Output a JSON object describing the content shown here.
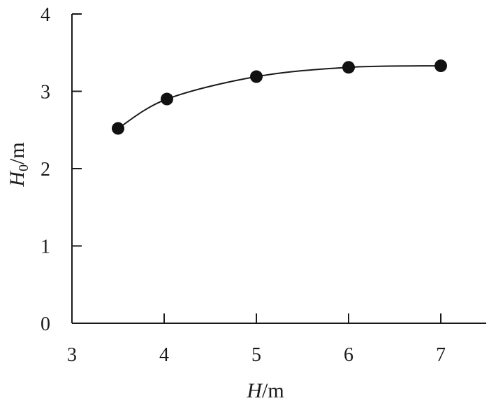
{
  "chart_data": {
    "type": "scatter",
    "title": "",
    "xlabel": {
      "symbol": "H",
      "sub": "",
      "unit": "/m"
    },
    "ylabel": {
      "symbol": "H",
      "sub": "0",
      "unit": "/m"
    },
    "xlim": [
      3,
      7.5
    ],
    "ylim": [
      0,
      4
    ],
    "xticks": [
      "3",
      "4",
      "5",
      "6",
      "7"
    ],
    "yticks": [
      "0",
      "1",
      "2",
      "3",
      "4"
    ],
    "grid": false,
    "legend": "none",
    "series": [
      {
        "x": [
          3.5,
          4.03,
          5.0,
          6.0,
          7.0
        ],
        "y": [
          2.52,
          2.9,
          3.19,
          3.31,
          3.33
        ],
        "marker": "filled-circle",
        "fitted_curve": true
      }
    ]
  },
  "colors": {
    "ink": "#1a1a1a",
    "marker": "#111111",
    "background": "#ffffff"
  }
}
